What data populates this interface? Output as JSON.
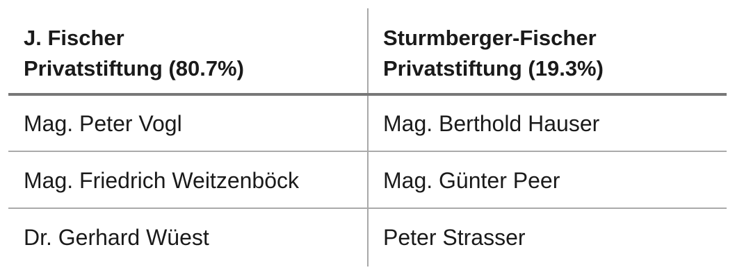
{
  "headers": [
    "J. Fischer\nPrivatstiftung (80.7%)",
    "Sturmberger-Fischer\nPrivatstiftung (19.3%)"
  ],
  "headers_lines": [
    [
      "J. Fischer",
      "Privatstiftung (80.7%)"
    ],
    [
      "Sturmberger-Fischer",
      "Privatstiftung (19.3%)"
    ]
  ],
  "rows": [
    [
      "Mag. Peter Vogl",
      "Mag. Berthold Hauser"
    ],
    [
      "Mag. Friedrich Weitzenböck",
      "Mag. Günter Peer"
    ],
    [
      "Dr. Gerhard Wüest",
      "Peter Strasser"
    ]
  ]
}
